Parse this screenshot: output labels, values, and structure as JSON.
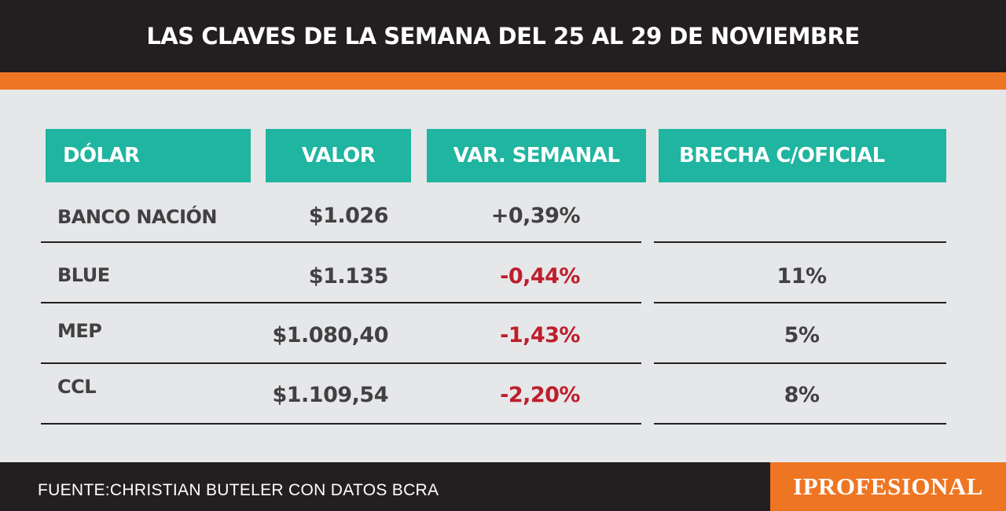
{
  "header": {
    "title": "LAS CLAVES DE LA SEMANA DEL 25 AL 29 DE NOVIEMBRE"
  },
  "colors": {
    "header_bg": "#231f20",
    "accent_orange": "#ee7623",
    "header_cell_teal": "#1fb5a0",
    "negative_red": "#be1e2d",
    "text_dark": "#414042",
    "background": "#e6e7e8"
  },
  "table": {
    "columns": [
      "DÓLAR",
      "VALOR",
      "VAR. SEMANAL",
      "BRECHA C/OFICIAL"
    ],
    "rows": [
      {
        "dolar": "BANCO NACIÓN",
        "valor": "$1.026",
        "var": "+0,39%",
        "brecha": ""
      },
      {
        "dolar": "BLUE",
        "valor": "$1.135",
        "var": "-0,44%",
        "brecha": "11%"
      },
      {
        "dolar": "MEP",
        "valor": "$1.080,40",
        "var": "-1,43%",
        "brecha": "5%"
      },
      {
        "dolar": "CCL",
        "valor": "$1.109,54",
        "var": "-2,20%",
        "brecha": "8%"
      }
    ]
  },
  "footer": {
    "source": "FUENTE:CHRISTIAN BUTELER  CON DATOS BCRA",
    "brand": "IPROFESIONAL"
  }
}
